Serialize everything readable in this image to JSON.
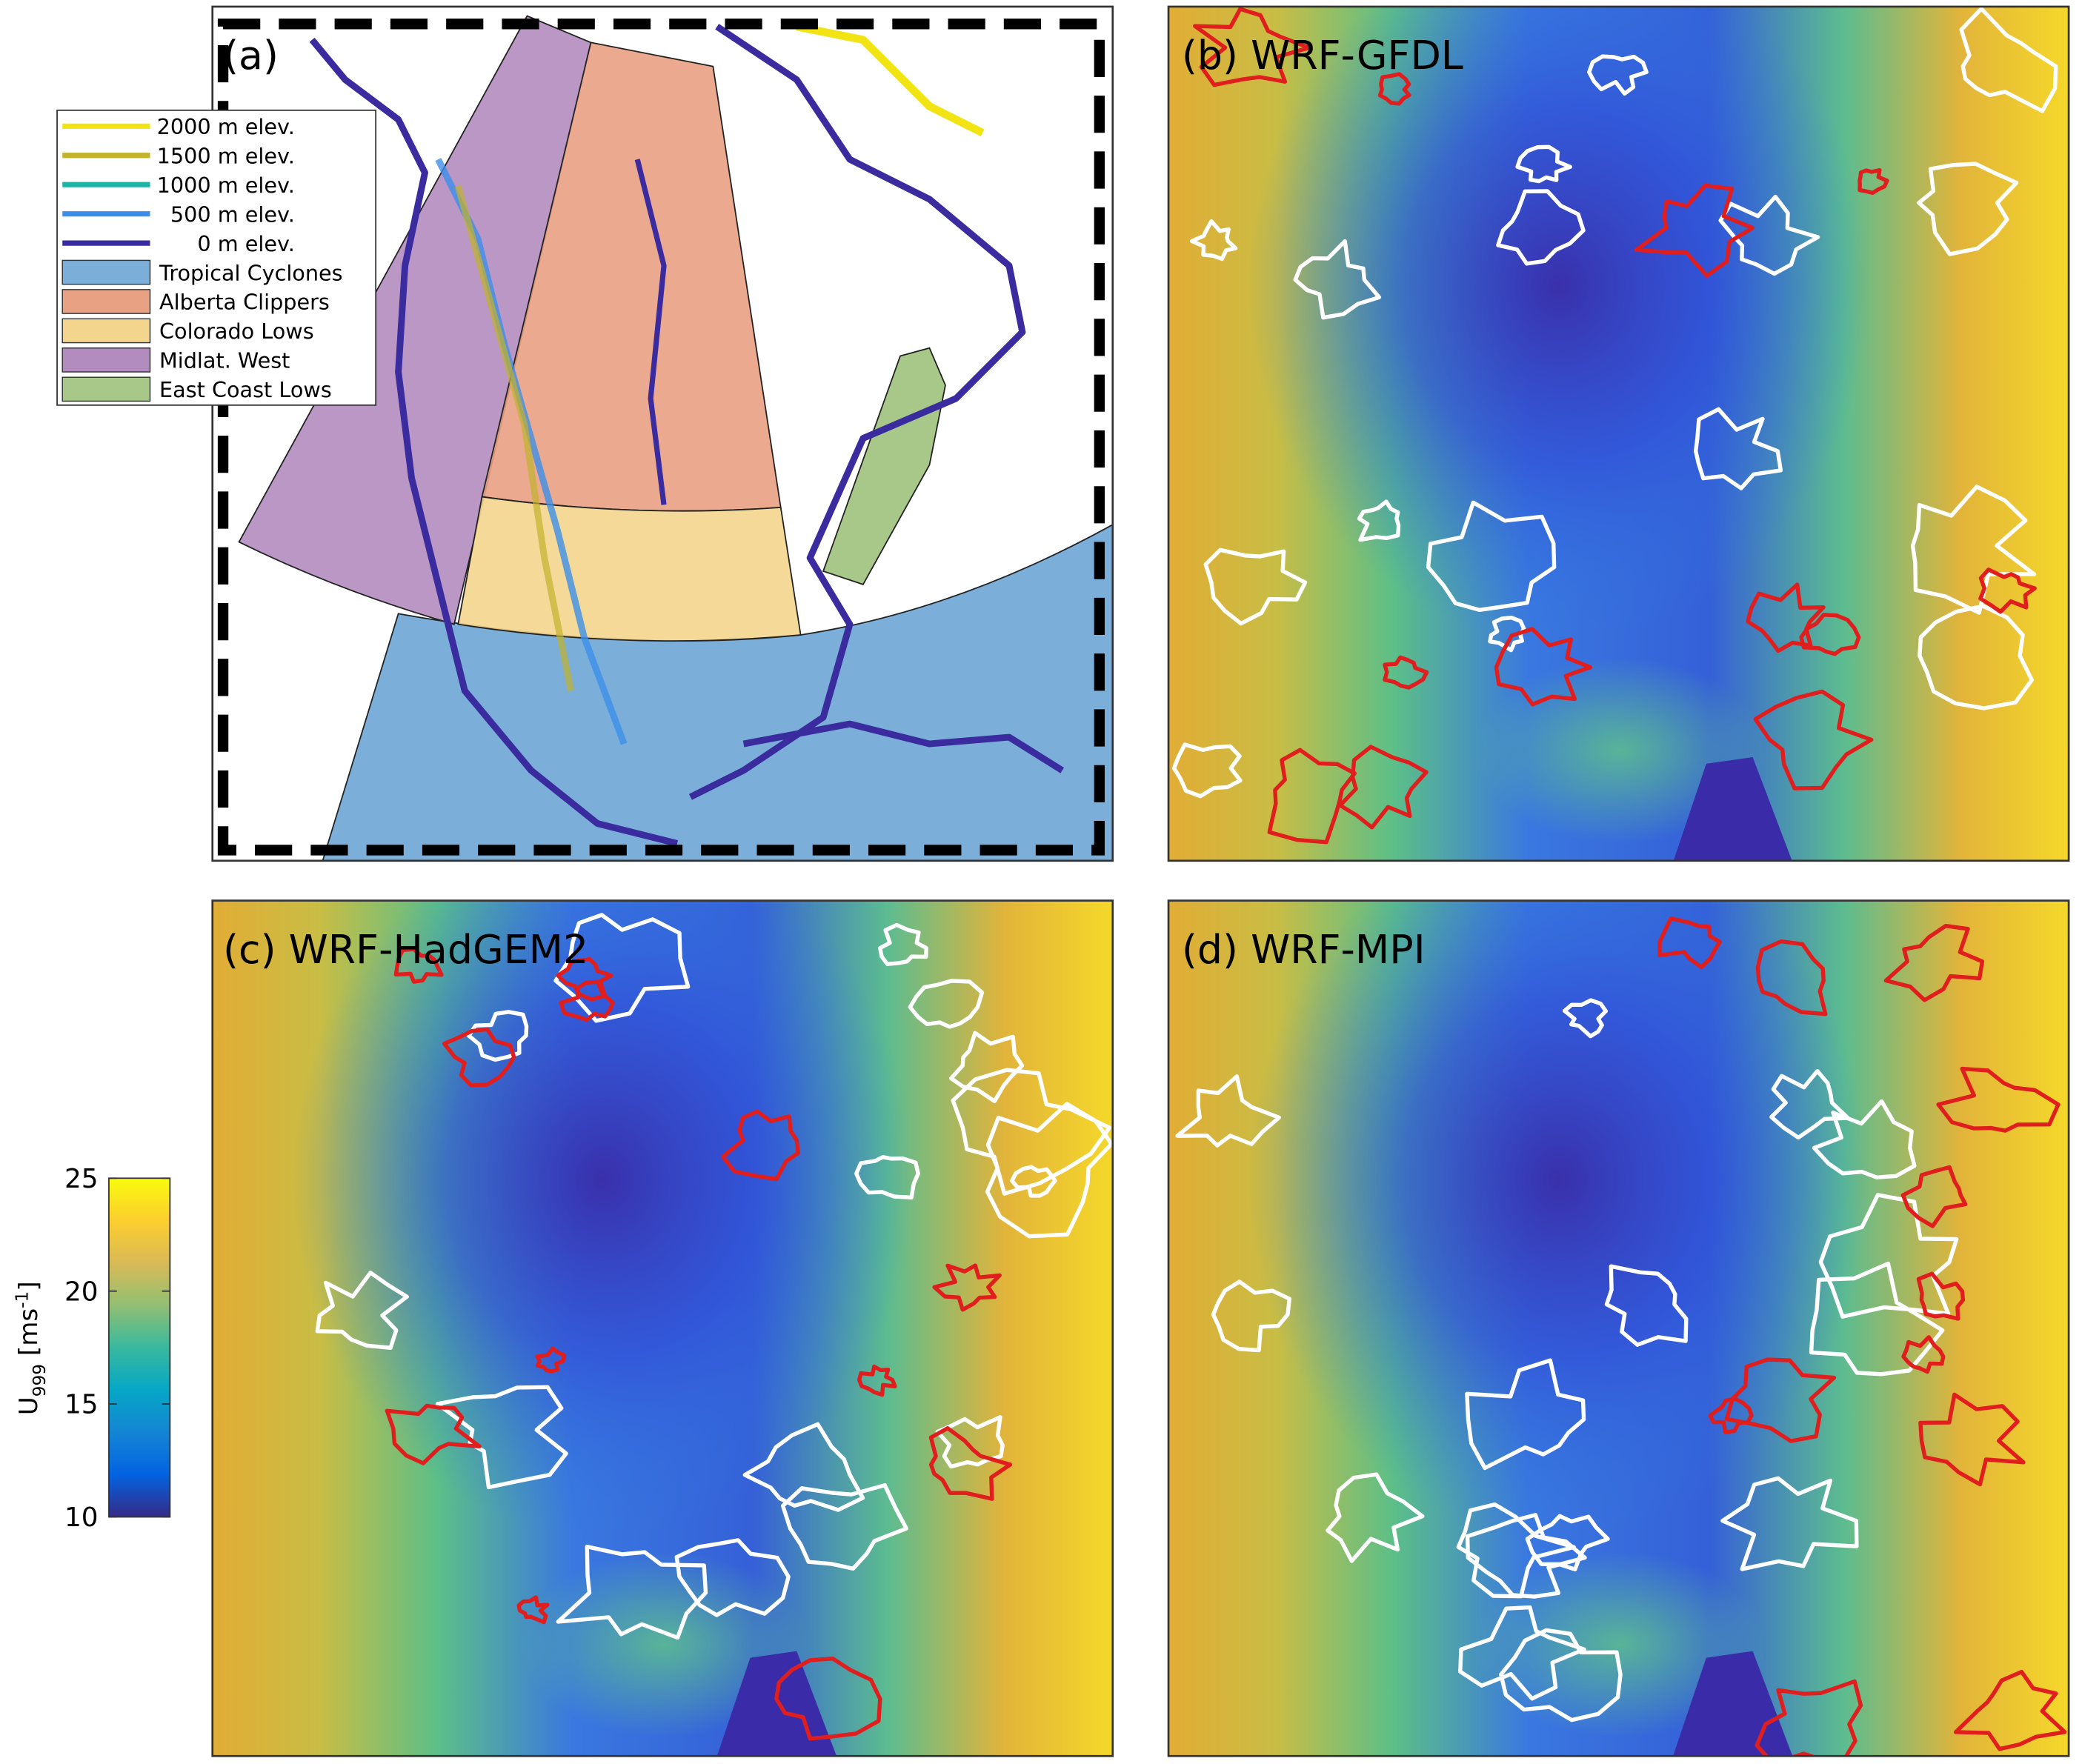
{
  "panels": [
    {
      "label": "(a)"
    },
    {
      "label": "(b) WRF-GFDL"
    },
    {
      "label": "(c) WRF-HadGEM2"
    },
    {
      "label": "(d) WRF-MPI"
    }
  ],
  "legend": {
    "items": [
      {
        "name": "2000 m elev.",
        "color": "#f2e414",
        "kind": "line"
      },
      {
        "name": "1500 m elev.",
        "color": "#c2b22c",
        "kind": "line"
      },
      {
        "name": "1000 m elev.",
        "color": "#1fb3a6",
        "kind": "line"
      },
      {
        "name": "500 m elev.",
        "color": "#3d8ee8",
        "kind": "line"
      },
      {
        "name": "0 m elev.",
        "color": "#3a2c9e",
        "kind": "line"
      },
      {
        "name": "Tropical Cyclones",
        "color": "#7bafd9",
        "kind": "patch"
      },
      {
        "name": "Alberta Clippers",
        "color": "#e9a183",
        "kind": "patch"
      },
      {
        "name": "Colorado Lows",
        "color": "#f4d58d",
        "kind": "patch"
      },
      {
        "name": "Midlat. West",
        "color": "#b28cbf",
        "kind": "patch"
      },
      {
        "name": "East Coast Lows",
        "color": "#a8c88a",
        "kind": "patch"
      }
    ]
  },
  "colorbar": {
    "label": {
      "base": "U",
      "sub": "999",
      "unit": " [ms",
      "sup": "-1",
      "close": "]"
    },
    "lim": [
      10,
      25
    ],
    "ticks": [
      10,
      15,
      20,
      25
    ],
    "colors": [
      "#352a87",
      "#0363e1",
      "#1485d4",
      "#06a7c6",
      "#38b99e",
      "#92bf73",
      "#d9ba56",
      "#fcce2e",
      "#f9fb0e"
    ]
  }
}
